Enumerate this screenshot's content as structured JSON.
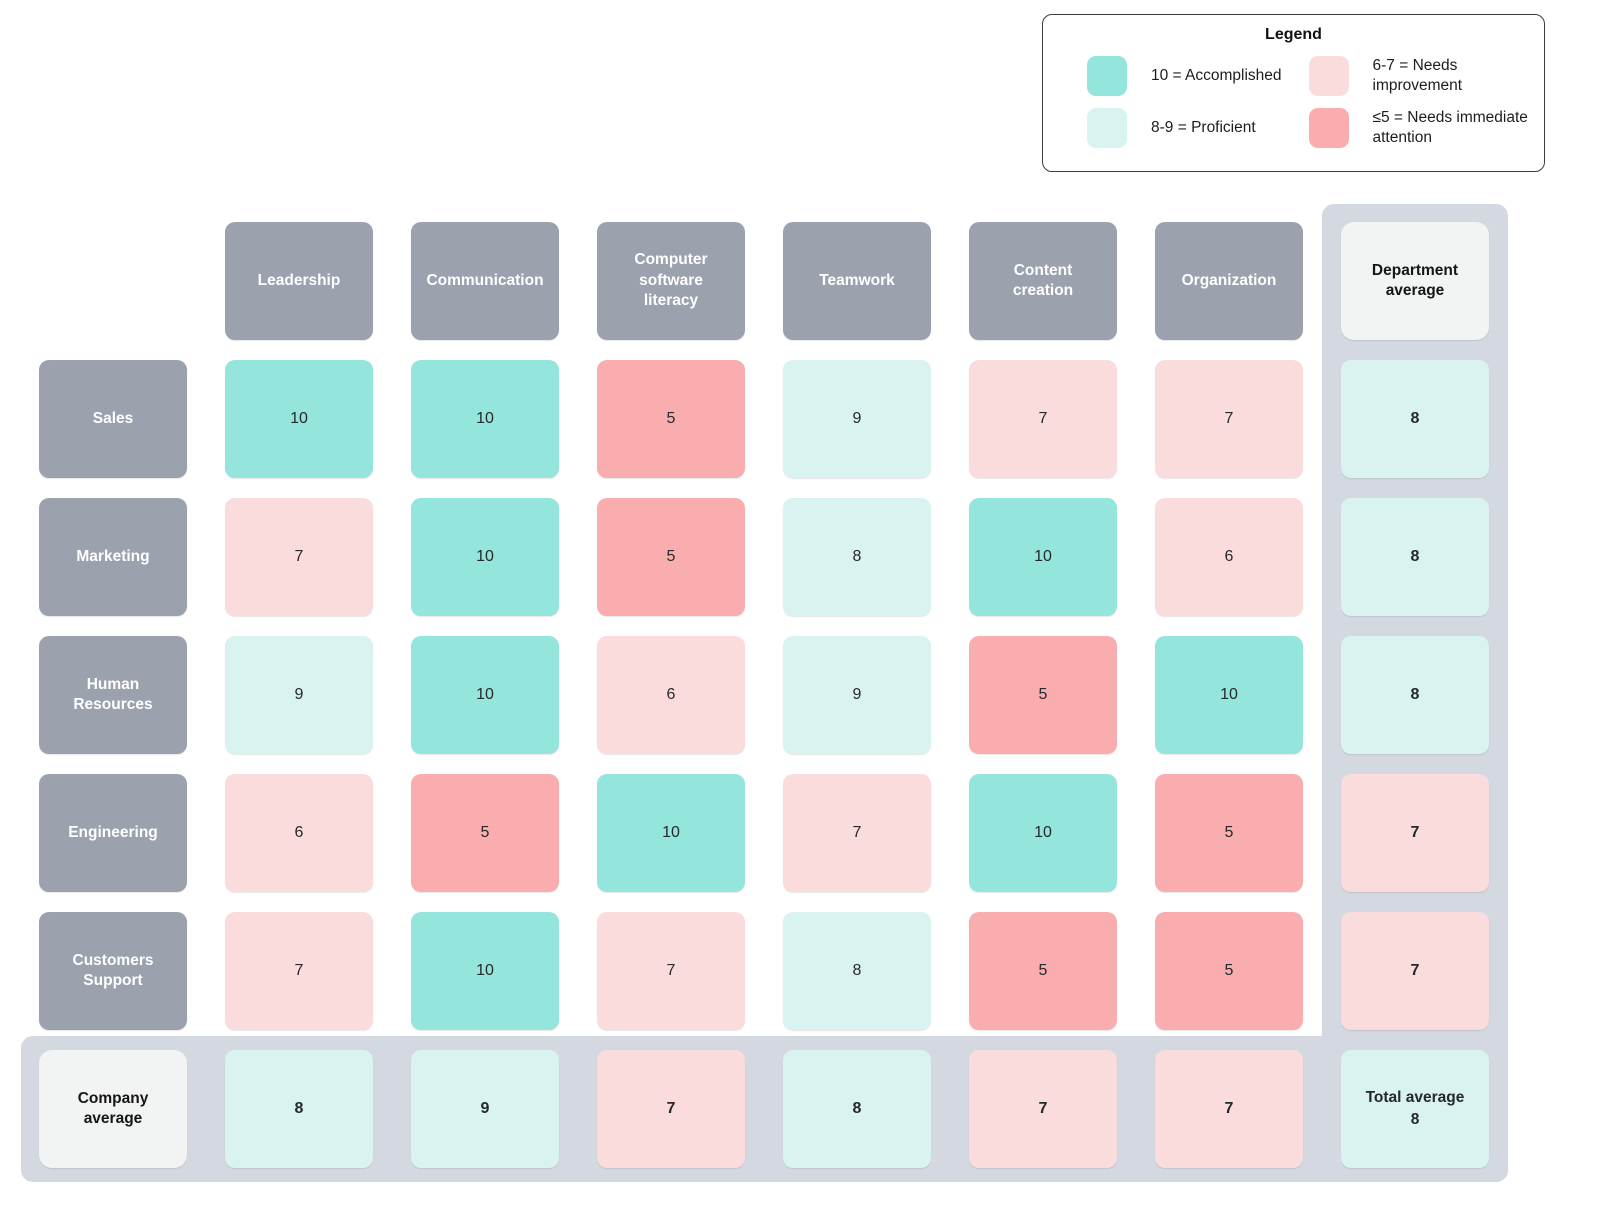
{
  "legend": {
    "title": "Legend",
    "items": [
      {
        "name": "accomplished",
        "label": "10 = Accomplished",
        "color": "#94E5DC"
      },
      {
        "name": "proficient",
        "label": "8-9 = Proficient",
        "color": "#D9F3F0"
      },
      {
        "name": "needs-improvement",
        "label": "6-7 = Needs improvement",
        "color": "#FBDCDD"
      },
      {
        "name": "needs-immediate-attention",
        "label": "≤5 = Needs immediate attention",
        "color": "#F9ADAE"
      }
    ]
  },
  "chart_data": {
    "type": "heatmap",
    "columns": [
      "Leadership",
      "Communication",
      "Computer software literacy",
      "Teamwork",
      "Content creation",
      "Organization"
    ],
    "department_average_label": "Department average",
    "rows": [
      {
        "label": "Sales",
        "scores": [
          10,
          10,
          5,
          9,
          7,
          7
        ],
        "average": 8
      },
      {
        "label": "Marketing",
        "scores": [
          7,
          10,
          5,
          8,
          10,
          6
        ],
        "average": 8
      },
      {
        "label": "Human Resources",
        "scores": [
          9,
          10,
          6,
          9,
          5,
          10
        ],
        "average": 8
      },
      {
        "label": "Engineering",
        "scores": [
          6,
          5,
          10,
          7,
          10,
          5
        ],
        "average": 7
      },
      {
        "label": "Customers Support",
        "scores": [
          7,
          10,
          7,
          8,
          5,
          5
        ],
        "average": 7
      }
    ],
    "company_average": {
      "label": "Company average",
      "scores": [
        8,
        9,
        7,
        8,
        7,
        7
      ]
    },
    "total_average": {
      "label": "Total average",
      "value": 8
    },
    "score_scale": {
      "10": "Accomplished",
      "8-9": "Proficient",
      "6-7": "Needs improvement",
      "≤5": "Needs immediate attention"
    }
  },
  "colors": {
    "accomplished": "#94E5DC",
    "proficient": "#D9F3F0",
    "needs_improvement": "#FBDCDD",
    "needs_attention": "#F9ADAE",
    "header_bg": "#9BA2AE",
    "header_text": "#FFFFFF",
    "average_strip": "#D4D8E0",
    "label_box_bg": "#F2F3F3",
    "cell_text": "#26282B"
  }
}
